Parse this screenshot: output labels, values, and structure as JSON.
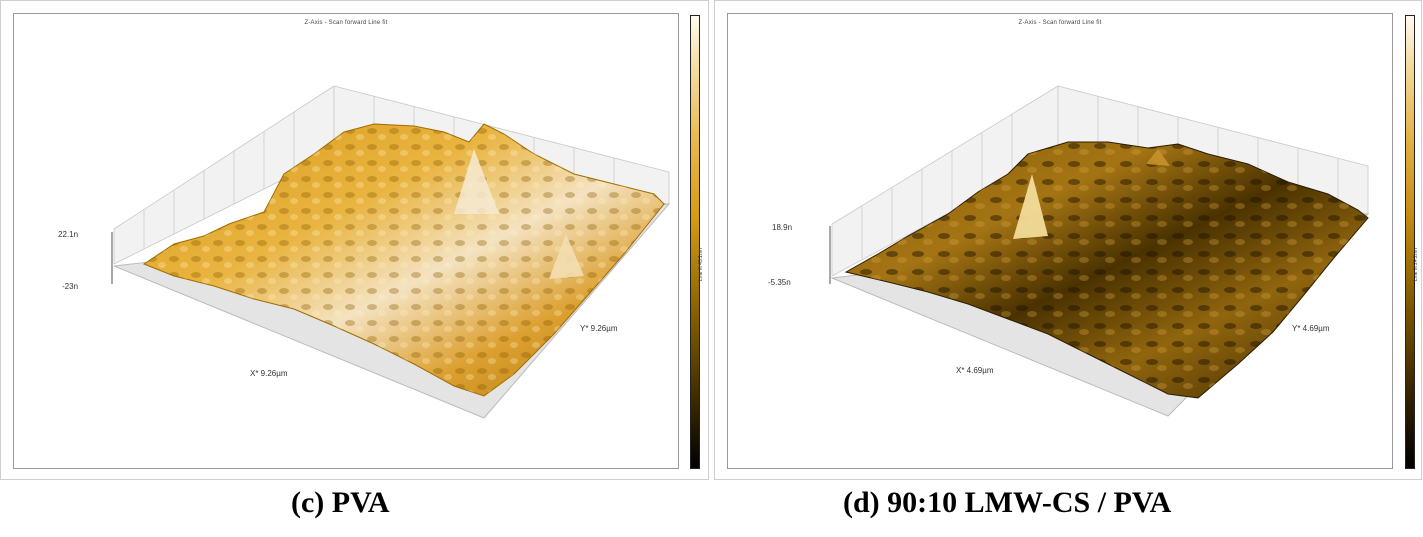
{
  "panels": [
    {
      "plot_title": "Z-Axis - Scan forward   Line fit",
      "z_max_label": "22.1n",
      "z_min_label": "-23n",
      "x_label": "X* 9.26µm",
      "y_label": "Y* 9.26µm",
      "caption": "(c) PVA",
      "colorbar_label": "Line fit 45.1nm",
      "colors": {
        "surface_high": "#f5e6c8",
        "surface_mid": "#e0a020",
        "surface_low": "#5a3c00"
      }
    },
    {
      "plot_title": "Z-Axis - Scan forward   Line fit",
      "z_max_label": "18.9n",
      "z_min_label": "-5.35n",
      "x_label": "X* 4.69µm",
      "y_label": "Y* 4.69µm",
      "caption": "(d) 90:10 LMW-CS  / PVA",
      "colorbar_label": "Line fit 24.2nm",
      "colors": {
        "surface_high": "#f0d890",
        "surface_mid": "#a07010",
        "surface_low": "#1c1200"
      }
    }
  ]
}
